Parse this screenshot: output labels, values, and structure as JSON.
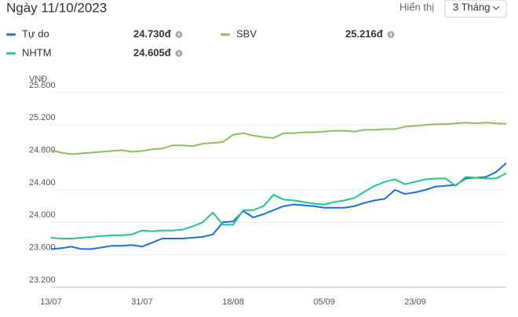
{
  "header": {
    "title": "Ngày 11/10/2023",
    "range_label": "Hiển thị",
    "range_value": "3 Tháng"
  },
  "chart_data": {
    "type": "line",
    "y_label": "VNĐ",
    "categories": [
      "13/07",
      null,
      null,
      null,
      null,
      null,
      null,
      null,
      null,
      "31/07",
      null,
      null,
      null,
      null,
      null,
      null,
      null,
      null,
      "18/08",
      null,
      null,
      null,
      null,
      null,
      null,
      null,
      null,
      "05/09",
      null,
      null,
      null,
      null,
      null,
      null,
      null,
      null,
      "23/09",
      null,
      null,
      null,
      null,
      null,
      null,
      null,
      null,
      null
    ],
    "series": [
      {
        "name": "Tự do",
        "latest": "24.730đ",
        "color": "#1f6fd6",
        "values": [
          23670,
          23680,
          23700,
          23670,
          23670,
          23690,
          23710,
          23710,
          23720,
          23700,
          23750,
          23800,
          23800,
          23800,
          23810,
          23820,
          23850,
          24000,
          24010,
          24140,
          24060,
          24100,
          24150,
          24200,
          24220,
          24210,
          24200,
          24180,
          24180,
          24180,
          24200,
          24240,
          24270,
          24290,
          24400,
          24350,
          24370,
          24400,
          24440,
          24450,
          24460,
          24540,
          24550,
          24560,
          24620,
          24730
        ]
      },
      {
        "name": "SBV",
        "latest": "25.216đ",
        "color": "#8fbf5a",
        "values": [
          24890,
          24860,
          24840,
          24850,
          24860,
          24870,
          24880,
          24890,
          24870,
          24880,
          24900,
          24910,
          24950,
          24950,
          24940,
          24970,
          24980,
          24990,
          25080,
          25100,
          25070,
          25050,
          25040,
          25100,
          25100,
          25110,
          25110,
          25120,
          25130,
          25130,
          25120,
          25140,
          25140,
          25150,
          25150,
          25180,
          25190,
          25200,
          25210,
          25210,
          25220,
          25230,
          25220,
          25230,
          25220,
          25216
        ]
      },
      {
        "name": "NHTM",
        "latest": "24.605đ",
        "color": "#21c98a",
        "values": [
          23810,
          23800,
          23800,
          23810,
          23820,
          23830,
          23840,
          23840,
          23850,
          23900,
          23890,
          23900,
          23900,
          23910,
          23950,
          24000,
          24120,
          23970,
          23970,
          24150,
          24150,
          24200,
          24340,
          24280,
          24270,
          24250,
          24230,
          24220,
          24250,
          24270,
          24300,
          24380,
          24450,
          24500,
          24530,
          24470,
          24500,
          24530,
          24540,
          24540,
          24450,
          24560,
          24550,
          24540,
          24540,
          24605
        ]
      }
    ],
    "ylim": [
      23200,
      25600
    ],
    "yticks": [
      {
        "value": 23200,
        "label": "23.200"
      },
      {
        "value": 23600,
        "label": "23.600"
      },
      {
        "value": 24000,
        "label": "24.000"
      },
      {
        "value": 24400,
        "label": "24.400"
      },
      {
        "value": 24800,
        "label": "24.800"
      },
      {
        "value": 25200,
        "label": "25.200"
      },
      {
        "value": 25600,
        "label": "25.600"
      }
    ],
    "grid": true
  }
}
